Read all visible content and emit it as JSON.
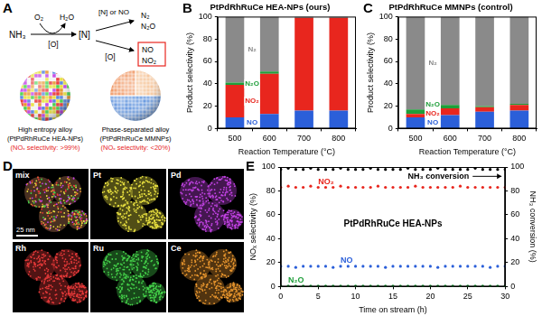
{
  "panel_labels": [
    "A",
    "B",
    "C",
    "D",
    "E"
  ],
  "schematic": {
    "reactant": "NH₃",
    "reagent_in": "O₂",
    "reagent_out": "H₂O",
    "oxidant": "[O]",
    "intermediate": "[N]",
    "branch_up": {
      "label": "[N] or NO",
      "products": [
        "N₂",
        "N₂O"
      ]
    },
    "branch_down": {
      "label": "[O]",
      "products": [
        "NO",
        "NO₂"
      ]
    },
    "particles": [
      {
        "name": "High entropy alloy",
        "formula": "(PtPdRhRuCe HEA-NPs)",
        "selectivity": "(NOₓ selectivity: >99%)"
      },
      {
        "name": "Phase-separated alloy",
        "formula": "(PtPdRhRuCe MMNPs)",
        "selectivity": "(NOₓ selectivity: <20%)"
      }
    ]
  },
  "chart_data": [
    {
      "type": "bar",
      "title": "PtPdRhRuCe HEA-NPs (ours)",
      "xlabel": "Reaction Temperature (°C)",
      "ylabel": "Product selectivity (%)",
      "categories": [
        "500",
        "600",
        "700",
        "800"
      ],
      "series": [
        {
          "name": "NO",
          "color": "#2b5fd9",
          "values": [
            10,
            13,
            16,
            16
          ]
        },
        {
          "name": "NO₂",
          "color": "#e8261e",
          "values": [
            29,
            36,
            83,
            83
          ]
        },
        {
          "name": "N₂O",
          "color": "#1f9e3a",
          "values": [
            2,
            2,
            0,
            0
          ]
        },
        {
          "name": "N₂",
          "color": "#8a8a8a",
          "values": [
            59,
            49,
            1,
            1
          ]
        }
      ],
      "ylim": [
        0,
        100
      ],
      "yticks": [
        0,
        20,
        40,
        60,
        80,
        100
      ],
      "stacked": true,
      "grid": false
    },
    {
      "type": "bar",
      "title": "PtPdRhRuCe MMNPs (control)",
      "xlabel": "Reaction Temperature (°C)",
      "ylabel": "Product selectivity (%)",
      "categories": [
        "500",
        "600",
        "700",
        "800"
      ],
      "series": [
        {
          "name": "NO",
          "color": "#2b5fd9",
          "values": [
            10,
            12,
            15,
            16
          ]
        },
        {
          "name": "NO₂",
          "color": "#e8261e",
          "values": [
            3,
            6,
            4,
            5
          ]
        },
        {
          "name": "N₂O",
          "color": "#1f9e3a",
          "values": [
            4,
            3,
            1,
            1
          ]
        },
        {
          "name": "N₂",
          "color": "#8a8a8a",
          "values": [
            83,
            79,
            80,
            78
          ]
        }
      ],
      "ylim": [
        0,
        100
      ],
      "yticks": [
        0,
        20,
        40,
        60,
        80,
        100
      ],
      "stacked": true,
      "grid": false
    },
    {
      "type": "scatter",
      "annotation": "PtPdRhRuCe HEA-NPs",
      "xlabel": "Time on stream (h)",
      "ylabel": "NOₓ selectivity (%)",
      "y2label": "NH₃ conversion (%)",
      "x": [
        0,
        1,
        2,
        3,
        4,
        5,
        6,
        7,
        8,
        9,
        10,
        11,
        12,
        13,
        14,
        15,
        16,
        17,
        18,
        19,
        20,
        21,
        22,
        23,
        24,
        25,
        26,
        27,
        28,
        29,
        30
      ],
      "series": [
        {
          "name": "NO₂",
          "color": "#e8261e",
          "values": [
            83,
            84,
            83,
            83,
            84,
            83,
            83,
            83,
            84,
            83,
            83,
            83,
            83,
            84,
            83,
            83,
            83,
            83,
            84,
            83,
            83,
            83,
            83,
            83,
            84,
            83,
            83,
            83,
            83,
            83,
            83
          ]
        },
        {
          "name": "NO",
          "color": "#2b5fd9",
          "values": [
            17,
            17,
            16,
            17,
            17,
            17,
            17,
            16,
            17,
            17,
            17,
            17,
            17,
            17,
            16,
            17,
            17,
            17,
            17,
            17,
            17,
            16,
            17,
            17,
            17,
            17,
            17,
            17,
            16,
            17,
            17
          ]
        },
        {
          "name": "N₂O",
          "color": "#1f9e3a",
          "values": [
            0.5,
            0.5,
            0.5,
            0.5,
            0.5,
            0.5,
            0.5,
            0.5,
            0.5,
            0.5,
            0.5,
            0.5,
            0.5,
            0.5,
            0.5,
            0.5,
            0.5,
            0.5,
            0.5,
            0.5,
            0.5,
            0.5,
            0.5,
            0.5,
            0.5,
            0.5,
            0.5,
            0.5,
            0.5,
            0.5,
            0.5
          ]
        },
        {
          "name": "NH₃ conversion",
          "color": "#000000",
          "axis": "y2",
          "values": [
            98,
            99,
            98,
            98,
            99,
            98,
            98,
            98,
            99,
            98,
            98,
            98,
            99,
            98,
            98,
            98,
            98,
            99,
            98,
            98,
            98,
            99,
            98,
            98,
            98,
            98,
            99,
            98,
            98,
            98,
            98
          ]
        }
      ],
      "xlim": [
        0,
        30
      ],
      "xticks": [
        0,
        5,
        10,
        15,
        20,
        25,
        30
      ],
      "ylim": [
        0,
        100
      ],
      "yticks": [
        0,
        20,
        40,
        60,
        80,
        100
      ],
      "y2lim": [
        0,
        100
      ],
      "y2ticks": [
        0,
        20,
        40,
        60,
        80,
        100
      ],
      "marker": "circle",
      "grid": false
    }
  ],
  "maps": {
    "scale_bar": "25 nm",
    "tiles": [
      {
        "label": "mix"
      },
      {
        "label": "Pt",
        "color": "#e8e040"
      },
      {
        "label": "Pd",
        "color": "#c443e6"
      },
      {
        "label": "Rh",
        "color": "#e83a3a"
      },
      {
        "label": "Ru",
        "color": "#45d24a"
      },
      {
        "label": "Ce",
        "color": "#e8962e"
      }
    ]
  }
}
